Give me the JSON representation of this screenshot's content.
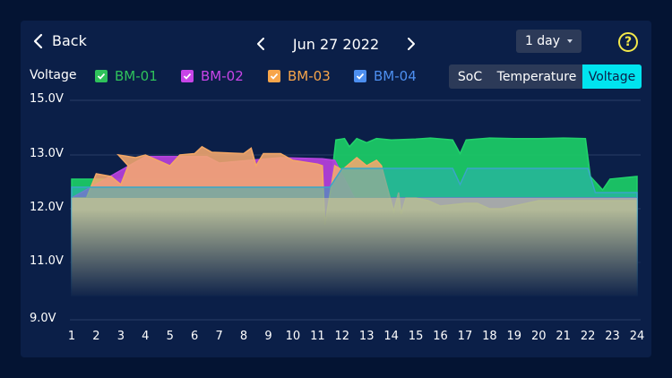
{
  "header": {
    "back_label": "Back",
    "date": "Jun 27 2022",
    "range": "1 day",
    "help": "?"
  },
  "toolbar": {
    "metric_label": "Voltage",
    "legend": [
      {
        "label": "BM-01",
        "color": "#2fc25b",
        "checked": true
      },
      {
        "label": "BM-02",
        "color": "#c845e8",
        "checked": true
      },
      {
        "label": "BM-03",
        "color": "#f7a54a",
        "checked": true
      },
      {
        "label": "BM-04",
        "color": "#4d8ff0",
        "checked": true
      }
    ],
    "tabs": [
      {
        "label": "SoC",
        "active": false
      },
      {
        "label": "Temperature",
        "active": false
      },
      {
        "label": "Voltage",
        "active": true
      }
    ]
  },
  "colors": {
    "background": "#041433",
    "card": "#0b1f48",
    "accent": "#00e4ef",
    "help": "#f2e84a"
  },
  "chart_data": {
    "type": "area",
    "title": "Voltage",
    "xlabel": "",
    "ylabel": "",
    "y_ticks": [
      "15.0V",
      "13.0V",
      "12.0V",
      "11.0V",
      "9.0V"
    ],
    "x_ticks": [
      "1",
      "2",
      "3",
      "4",
      "5",
      "6",
      "7",
      "8",
      "9",
      "10",
      "11",
      "12",
      "13",
      "14",
      "15",
      "16",
      "17",
      "18",
      "19",
      "20",
      "21",
      "22",
      "23",
      "24"
    ],
    "ylim": [
      9,
      15
    ],
    "grid": true,
    "legend_position": "top",
    "series": [
      {
        "name": "BM-01",
        "color": "#21d36b",
        "points": [
          [
            1,
            12.55
          ],
          [
            11.2,
            12.55
          ],
          [
            11.3,
            11.55
          ],
          [
            11.5,
            12.3
          ],
          [
            11.75,
            13.55
          ],
          [
            12.1,
            13.6
          ],
          [
            12.3,
            13.3
          ],
          [
            12.6,
            13.6
          ],
          [
            13,
            13.45
          ],
          [
            13.4,
            13.6
          ],
          [
            14,
            13.55
          ],
          [
            15,
            13.58
          ],
          [
            15.6,
            13.62
          ],
          [
            16.5,
            13.55
          ],
          [
            16.8,
            13.05
          ],
          [
            17.05,
            13.55
          ],
          [
            18,
            13.62
          ],
          [
            19,
            13.6
          ],
          [
            20,
            13.6
          ],
          [
            21,
            13.62
          ],
          [
            21.9,
            13.6
          ],
          [
            22.1,
            12.6
          ],
          [
            22.6,
            12.35
          ],
          [
            22.9,
            12.55
          ],
          [
            24,
            12.6
          ]
        ]
      },
      {
        "name": "BM-02",
        "color": "#b845e0",
        "points": [
          [
            1,
            12.2
          ],
          [
            4,
            12.97
          ],
          [
            6.5,
            12.97
          ],
          [
            7,
            12.85
          ],
          [
            9.5,
            12.95
          ],
          [
            11.2,
            12.93
          ],
          [
            11.7,
            12.9
          ],
          [
            12.5,
            12.2
          ],
          [
            24,
            12.2
          ]
        ]
      },
      {
        "name": "BM-03",
        "color": "#f4a866",
        "points": [
          [
            1,
            12.2
          ],
          [
            1.6,
            12.2
          ],
          [
            2,
            12.65
          ],
          [
            2.6,
            12.6
          ],
          [
            3,
            12.45
          ],
          [
            3.3,
            12.8
          ],
          [
            2.9,
            13.0
          ],
          [
            3.6,
            12.95
          ],
          [
            4,
            13.0
          ],
          [
            5,
            12.8
          ],
          [
            5.4,
            13.0
          ],
          [
            6,
            13.05
          ],
          [
            6.3,
            13.3
          ],
          [
            6.7,
            13.1
          ],
          [
            8,
            13.05
          ],
          [
            8.3,
            13.25
          ],
          [
            8.5,
            12.8
          ],
          [
            8.8,
            13.05
          ],
          [
            9.5,
            13.05
          ],
          [
            10,
            12.9
          ],
          [
            11,
            12.83
          ],
          [
            11.2,
            12.8
          ],
          [
            11.3,
            11.7
          ],
          [
            11.7,
            12.8
          ],
          [
            12,
            12.72
          ],
          [
            12.6,
            12.95
          ],
          [
            13,
            12.8
          ],
          [
            13.4,
            12.9
          ],
          [
            13.6,
            12.8
          ],
          [
            14.1,
            11.95
          ],
          [
            14.3,
            12.3
          ],
          [
            14.4,
            11.9
          ],
          [
            14.6,
            12.2
          ],
          [
            15,
            12.2
          ],
          [
            15.5,
            12.15
          ],
          [
            16,
            12.05
          ],
          [
            17,
            12.1
          ],
          [
            17.5,
            12.1
          ],
          [
            18,
            12.0
          ],
          [
            18.5,
            12.0
          ],
          [
            19,
            12.05
          ],
          [
            20,
            12.15
          ],
          [
            21,
            12.15
          ],
          [
            24,
            12.15
          ]
        ]
      },
      {
        "name": "BM-04",
        "color": "#3aa6c8",
        "points": [
          [
            1,
            12.4
          ],
          [
            11.2,
            12.4
          ],
          [
            11.5,
            12.4
          ],
          [
            12,
            12.75
          ],
          [
            13,
            12.75
          ],
          [
            14.5,
            12.75
          ],
          [
            16.5,
            12.75
          ],
          [
            16.8,
            12.45
          ],
          [
            17.1,
            12.75
          ],
          [
            22,
            12.75
          ],
          [
            22.3,
            12.3
          ],
          [
            24,
            12.3
          ]
        ]
      }
    ]
  }
}
